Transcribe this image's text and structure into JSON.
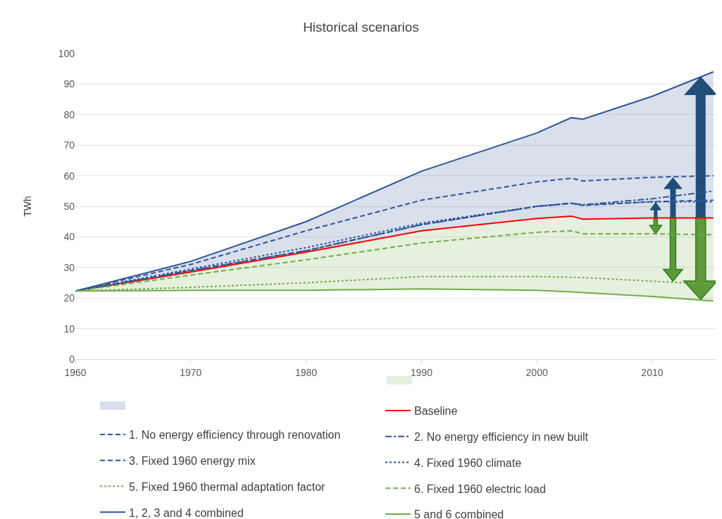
{
  "chart_data": {
    "type": "line",
    "title": "Historical scenarios",
    "ylabel": "TWh",
    "x": [
      1960,
      1970,
      1980,
      1990,
      2000,
      2003,
      2004,
      2010,
      2015.3
    ],
    "xlim": [
      1960,
      2015.5
    ],
    "xticks": [
      1960,
      1970,
      1980,
      1990,
      2000,
      2010
    ],
    "ylim": [
      0,
      100
    ],
    "yticks": [
      0,
      10,
      20,
      30,
      40,
      50,
      60,
      70,
      80,
      90,
      100
    ],
    "grid": "y",
    "legend": "bottom",
    "marker": "none",
    "series": [
      {
        "name": "Baseline",
        "color": "#ff0000",
        "line_style": "solid",
        "values": [
          22.3,
          28.5,
          35,
          42,
          46,
          46.8,
          45.8,
          46.2,
          46.2
        ]
      },
      {
        "name": "1. No energy efficiency through renovation",
        "color": "#2f5597",
        "line_style": "dashed",
        "values": [
          22.3,
          29,
          35.5,
          44,
          50,
          51,
          50.3,
          51.5,
          52
        ]
      },
      {
        "name": "2. No energy efficiency in new built",
        "color": "#2f5597",
        "line_style": "dashdot",
        "values": [
          22.3,
          29,
          35.5,
          44,
          50,
          51,
          50.5,
          52.5,
          55
        ]
      },
      {
        "name": "3. Fixed 1960 energy mix",
        "color": "#2f5597",
        "line_style": "dashed",
        "values": [
          22.3,
          31,
          42,
          52,
          58,
          59.2,
          58.3,
          59.5,
          60
        ]
      },
      {
        "name": "4. Fixed 1960 climate",
        "color": "#2f5597",
        "line_style": "dotted",
        "values": [
          22.3,
          29.5,
          36.5,
          44.5,
          50,
          51,
          50.5,
          51.5,
          51.5
        ]
      },
      {
        "name": "5. Fixed 1960 thermal adaptation factor",
        "color": "#70ad47",
        "line_style": "dotted",
        "values": [
          22.3,
          23.5,
          25,
          27,
          27,
          26.8,
          26.7,
          25.5,
          24.5
        ]
      },
      {
        "name": "6. Fixed 1960 electric load",
        "color": "#70ad47",
        "line_style": "dashed",
        "values": [
          22.3,
          27.5,
          32.5,
          38,
          41.5,
          42,
          41,
          41,
          40.7
        ]
      },
      {
        "name": "1, 2, 3 and 4 combined",
        "color": "#2f5597",
        "line_style": "solid",
        "values": [
          22.3,
          32,
          45,
          61.5,
          74,
          79,
          78.5,
          86,
          94
        ],
        "upper": [
          22.3,
          32,
          45,
          61.5,
          74,
          79,
          78.5,
          86,
          94
        ],
        "lower": [
          22.3,
          28.5,
          35,
          42,
          46,
          46.8,
          45.8,
          46.2,
          46.2
        ]
      },
      {
        "name": "5 and 6 combined",
        "color": "#70ad47",
        "line_style": "solid",
        "values": [
          22.3,
          22.5,
          22.5,
          23,
          22.5,
          22,
          21.8,
          20.5,
          19
        ],
        "lower": [
          22.3,
          22.5,
          22.5,
          23,
          22.5,
          22,
          21.8,
          20.5,
          19
        ],
        "upper": [
          22.3,
          28.5,
          35,
          42,
          46,
          46.8,
          45.8,
          46.2,
          46.2
        ]
      }
    ]
  }
}
